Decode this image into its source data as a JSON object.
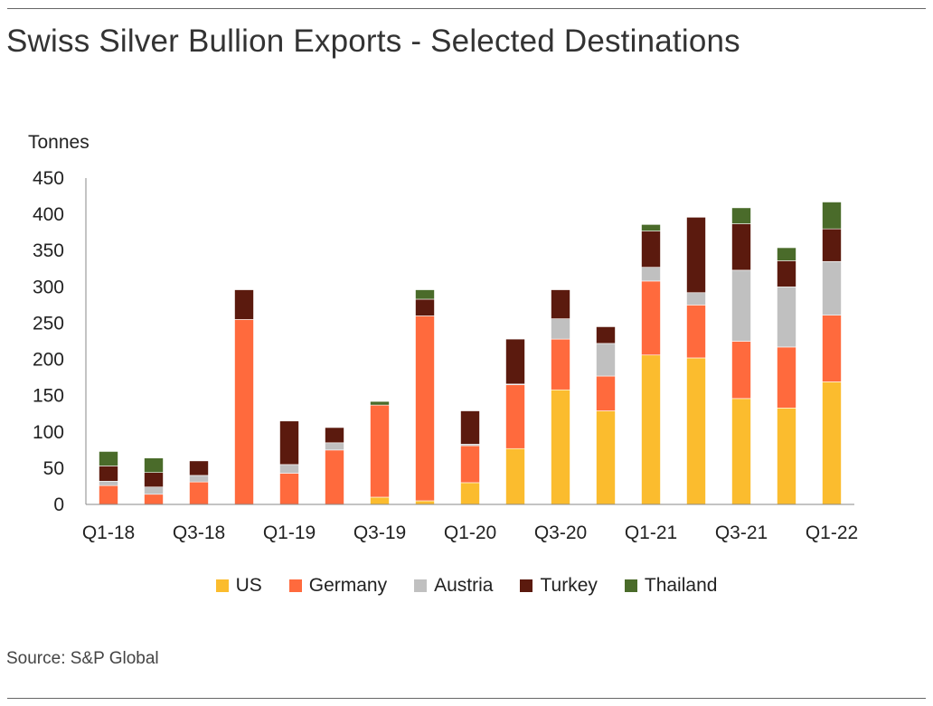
{
  "title": "Swiss Silver Bullion Exports - Selected Destinations",
  "source": "Source: S&P Global",
  "chart_data": {
    "type": "bar",
    "stacked": true,
    "ylabel": "Tonnes",
    "xlabel": "",
    "ylim": [
      0,
      450
    ],
    "yticks": [
      0,
      50,
      100,
      150,
      200,
      250,
      300,
      350,
      400,
      450
    ],
    "categories": [
      "Q1-18",
      "Q2-18",
      "Q3-18",
      "Q4-18",
      "Q1-19",
      "Q2-19",
      "Q3-19",
      "Q4-19",
      "Q1-20",
      "Q2-20",
      "Q3-20",
      "Q4-20",
      "Q1-21",
      "Q2-21",
      "Q3-21",
      "Q4-21",
      "Q1-22"
    ],
    "xtick_labels": [
      "Q1-18",
      "Q3-18",
      "Q1-19",
      "Q3-19",
      "Q1-20",
      "Q3-20",
      "Q1-21",
      "Q3-21",
      "Q1-22"
    ],
    "grid": false,
    "legend_position": "bottom",
    "series": [
      {
        "name": "US",
        "color": "#FBBC2E",
        "values": [
          0,
          0,
          0,
          0,
          0,
          0,
          10,
          5,
          30,
          77,
          158,
          129,
          206,
          202,
          146,
          133,
          169
        ]
      },
      {
        "name": "Germany",
        "color": "#FF6A3D",
        "values": [
          26,
          14,
          31,
          255,
          43,
          75,
          127,
          255,
          51,
          88,
          70,
          48,
          102,
          73,
          79,
          84,
          92
        ]
      },
      {
        "name": "Austria",
        "color": "#C0C0C0",
        "values": [
          6,
          10,
          9,
          0,
          12,
          10,
          0,
          0,
          2,
          1,
          28,
          45,
          19,
          17,
          98,
          83,
          74
        ]
      },
      {
        "name": "Turkey",
        "color": "#5B1A0E",
        "values": [
          21,
          20,
          20,
          41,
          60,
          21,
          0,
          23,
          46,
          62,
          40,
          23,
          50,
          104,
          64,
          36,
          45
        ]
      },
      {
        "name": "Thailand",
        "color": "#4A6B2A",
        "values": [
          20,
          20,
          0,
          0,
          0,
          0,
          5,
          13,
          0,
          0,
          0,
          0,
          9,
          0,
          22,
          18,
          37
        ]
      }
    ]
  }
}
